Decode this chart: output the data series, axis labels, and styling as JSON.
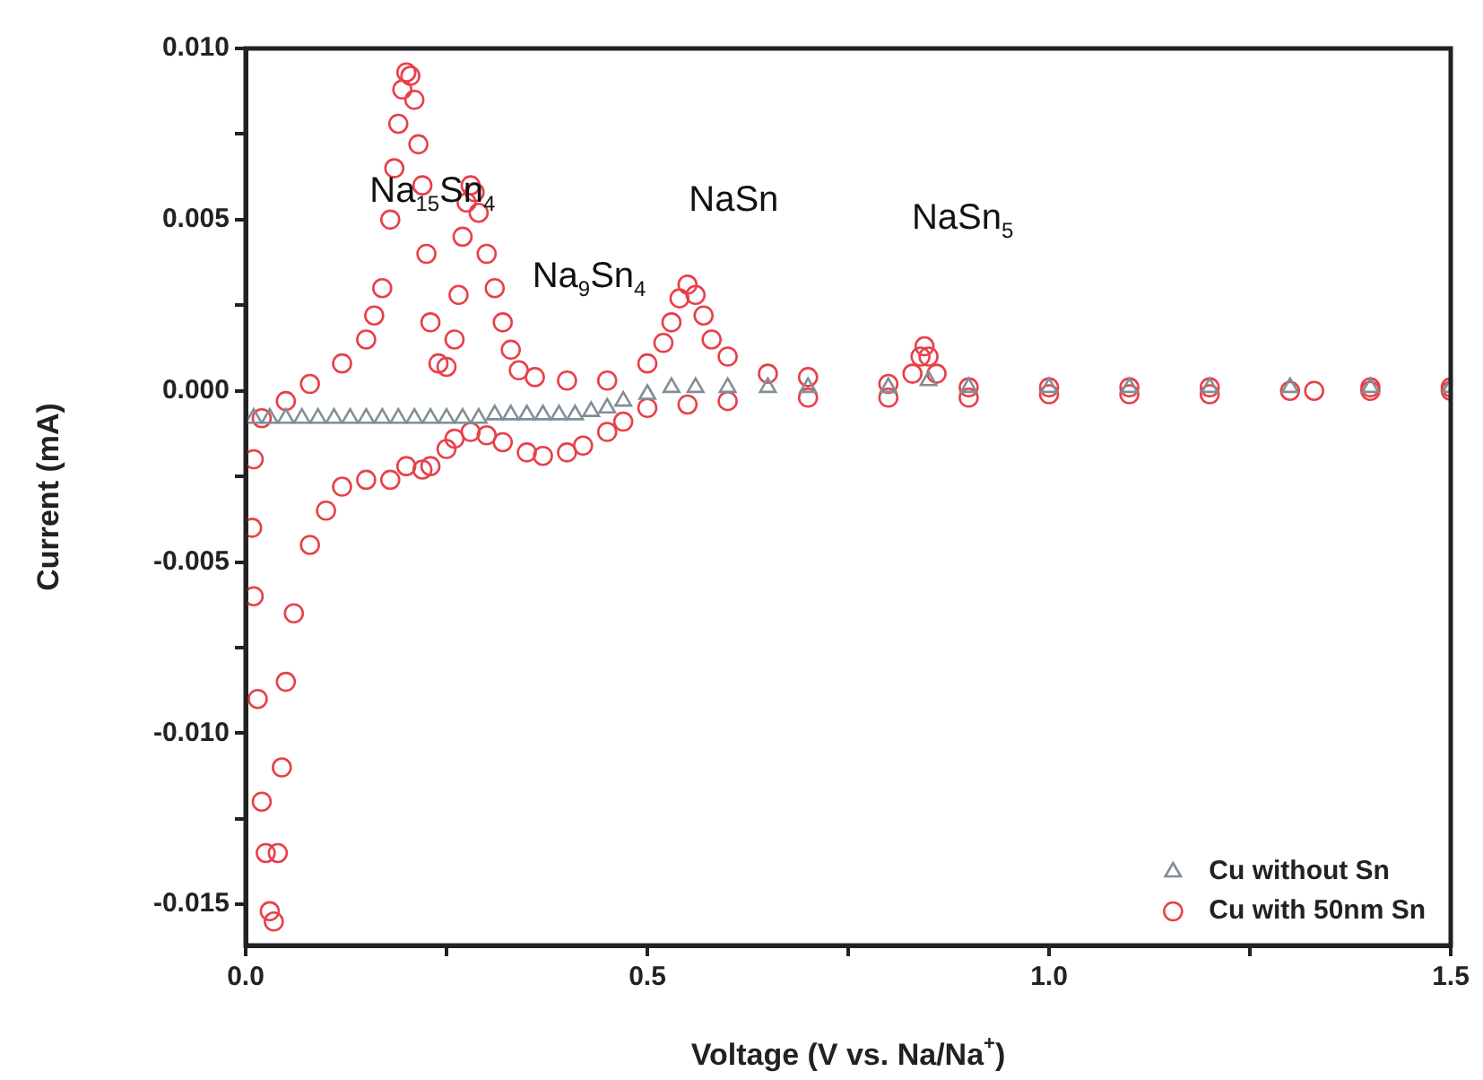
{
  "chart_data": {
    "type": "scatter",
    "xlabel": "Voltage (V vs. Na/Na$^{+}$)",
    "ylabel": "Current (mA)",
    "xlim": [
      0,
      1.5
    ],
    "ylim": [
      -0.0162,
      0.01
    ],
    "xticks": [
      {
        "value": 0,
        "label": "0.0"
      },
      {
        "value": 0.25,
        "label": null
      },
      {
        "value": 0.5,
        "label": "0.5"
      },
      {
        "value": 0.75,
        "label": null
      },
      {
        "value": 1,
        "label": "1.0"
      },
      {
        "value": 1.25,
        "label": null
      },
      {
        "value": 1.5,
        "label": "1.5"
      }
    ],
    "yticks": [
      {
        "value": -0.015,
        "label": "-0.015"
      },
      {
        "value": -0.0125,
        "label": null
      },
      {
        "value": -0.01,
        "label": "-0.010"
      },
      {
        "value": -0.0075,
        "label": null
      },
      {
        "value": -0.005,
        "label": "-0.005"
      },
      {
        "value": -0.0025,
        "label": null
      },
      {
        "value": 0,
        "label": "0.000"
      },
      {
        "value": 0.0025,
        "label": null
      },
      {
        "value": 0.005,
        "label": "0.005"
      },
      {
        "value": 0.0075,
        "label": null
      },
      {
        "value": 0.01,
        "label": "0.010"
      }
    ],
    "legend": "bottom right",
    "grid": false,
    "series": [
      {
        "name": "Cu without Sn",
        "color": "#7f8f96",
        "marker": "triangle",
        "x": [
          0.01,
          0.03,
          0.05,
          0.07,
          0.09,
          0.11,
          0.13,
          0.15,
          0.17,
          0.19,
          0.21,
          0.23,
          0.25,
          0.27,
          0.29,
          0.31,
          0.33,
          0.35,
          0.37,
          0.39,
          0.41,
          0.43,
          0.45,
          0.47,
          0.5,
          0.53,
          0.56,
          0.6,
          0.65,
          0.7,
          0.8,
          0.85,
          0.9,
          1.0,
          1.1,
          1.2,
          1.3,
          1.4,
          1.5
        ],
        "values": [
          -0.0008,
          -0.0008,
          -0.0008,
          -0.0008,
          -0.0008,
          -0.0008,
          -0.0008,
          -0.0008,
          -0.0008,
          -0.0008,
          -0.0008,
          -0.0008,
          -0.0008,
          -0.0008,
          -0.0008,
          -0.0007,
          -0.0007,
          -0.0007,
          -0.0007,
          -0.0007,
          -0.0007,
          -0.0006,
          -0.0005,
          -0.0003,
          -0.0001,
          0.0001,
          0.0001,
          0.0001,
          0.0001,
          0.0001,
          0.0001,
          0.0003,
          0.0001,
          0.0001,
          0.0001,
          0.0001,
          0.0001,
          0.0001,
          0.0001
        ]
      },
      {
        "name": "Cu with 50nm Sn",
        "color": "#e8404a",
        "marker": "circle",
        "x": [
          1.5,
          1.4,
          1.3,
          1.2,
          1.1,
          1.0,
          0.9,
          0.8,
          0.7,
          0.6,
          0.55,
          0.5,
          0.47,
          0.45,
          0.42,
          0.4,
          0.37,
          0.35,
          0.32,
          0.3,
          0.28,
          0.26,
          0.25,
          0.23,
          0.22,
          0.2,
          0.18,
          0.15,
          0.12,
          0.1,
          0.08,
          0.06,
          0.05,
          0.045,
          0.04,
          0.035,
          0.03,
          0.025,
          0.02,
          0.015,
          0.01,
          0.008,
          0.01,
          0.02,
          0.05,
          0.08,
          0.12,
          0.15,
          0.16,
          0.17,
          0.18,
          0.185,
          0.19,
          0.195,
          0.2,
          0.205,
          0.21,
          0.215,
          0.22,
          0.225,
          0.23,
          0.24,
          0.25,
          0.26,
          0.265,
          0.27,
          0.275,
          0.28,
          0.285,
          0.29,
          0.3,
          0.31,
          0.32,
          0.33,
          0.34,
          0.36,
          0.4,
          0.45,
          0.5,
          0.52,
          0.53,
          0.54,
          0.55,
          0.56,
          0.57,
          0.58,
          0.6,
          0.65,
          0.7,
          0.8,
          0.83,
          0.84,
          0.845,
          0.85,
          0.86,
          0.9,
          1.0,
          1.1,
          1.2,
          1.33,
          1.4,
          1.5
        ],
        "values": [
          0,
          0,
          0,
          -0.0001,
          -0.0001,
          -0.0001,
          -0.0002,
          -0.0002,
          -0.0002,
          -0.0003,
          -0.0004,
          -0.0005,
          -0.0009,
          -0.0012,
          -0.0016,
          -0.0018,
          -0.0019,
          -0.0018,
          -0.0015,
          -0.0013,
          -0.0012,
          -0.0014,
          -0.0017,
          -0.0022,
          -0.0023,
          -0.0022,
          -0.0026,
          -0.0026,
          -0.0028,
          -0.0035,
          -0.0045,
          -0.0065,
          -0.0085,
          -0.011,
          -0.0135,
          -0.0155,
          -0.0152,
          -0.0135,
          -0.012,
          -0.009,
          -0.006,
          -0.004,
          -0.002,
          -0.0008,
          -0.0003,
          0.0002,
          0.0008,
          0.0015,
          0.0022,
          0.003,
          0.005,
          0.0065,
          0.0078,
          0.0088,
          0.0093,
          0.0092,
          0.0085,
          0.0072,
          0.006,
          0.004,
          0.002,
          0.0008,
          0.0007,
          0.0015,
          0.0028,
          0.0045,
          0.0055,
          0.006,
          0.0058,
          0.0052,
          0.004,
          0.003,
          0.002,
          0.0012,
          0.0006,
          0.0004,
          0.0003,
          0.0003,
          0.0008,
          0.0014,
          0.002,
          0.0027,
          0.0031,
          0.0028,
          0.0022,
          0.0015,
          0.001,
          0.0005,
          0.0004,
          0.0002,
          0.0005,
          0.001,
          0.0013,
          0.001,
          0.0005,
          0.0001,
          0.0001,
          0.0001,
          0.0001,
          0,
          0.0001,
          0.0001
        ]
      }
    ],
    "annotations": [
      "Na$_{15}$Sn$_{4}$",
      "Na$_{9}$Sn$_{4}$",
      "NaSn",
      "NaSn$_{5}$"
    ]
  }
}
